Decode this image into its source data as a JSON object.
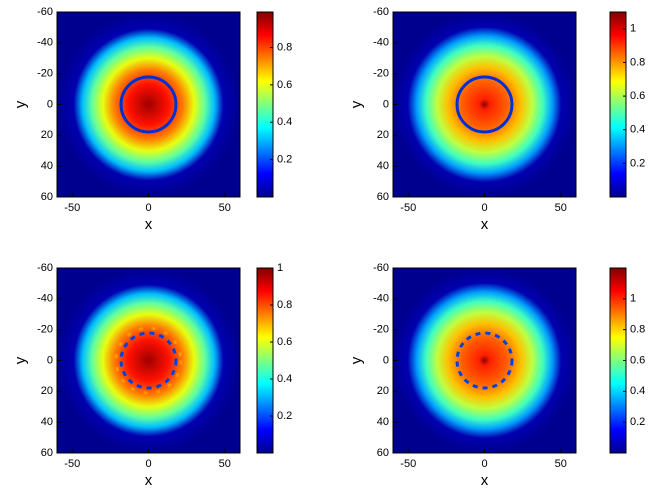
{
  "chart_data": [
    {
      "type": "heatmap",
      "xlabel": "x",
      "ylabel": "y",
      "xlim": [
        -60,
        60
      ],
      "ylim": [
        -60,
        60
      ],
      "y_reversed": true,
      "xticks": [
        -50,
        0,
        50
      ],
      "yticks": [
        -60,
        -40,
        -20,
        0,
        20,
        40,
        60
      ],
      "colormap": "jet",
      "clim": [
        0,
        0.99
      ],
      "cticks": [
        0.2,
        0.4,
        0.6,
        0.8
      ]
    },
    {
      "type": "heatmap",
      "xlabel": "x",
      "ylabel": "y",
      "xlim": [
        -60,
        60
      ],
      "ylim": [
        -60,
        60
      ],
      "y_reversed": true,
      "xticks": [
        -50,
        0,
        50
      ],
      "yticks": [
        -60,
        -40,
        -20,
        0,
        20,
        40,
        60
      ],
      "colormap": "jet",
      "clim": [
        0,
        1.1
      ],
      "cticks": [
        0.2,
        0.4,
        0.6,
        0.8,
        1
      ]
    },
    {
      "type": "heatmap",
      "xlabel": "x",
      "ylabel": "y",
      "xlim": [
        -60,
        60
      ],
      "ylim": [
        -60,
        60
      ],
      "y_reversed": true,
      "xticks": [
        -50,
        0,
        50
      ],
      "yticks": [
        -60,
        -40,
        -20,
        0,
        20,
        40,
        60
      ],
      "colormap": "jet",
      "clim": [
        0,
        1
      ],
      "cticks": [
        0.2,
        0.4,
        0.6,
        0.8,
        1
      ]
    },
    {
      "type": "heatmap",
      "xlabel": "x",
      "ylabel": "y",
      "xlim": [
        -60,
        60
      ],
      "ylim": [
        -60,
        60
      ],
      "y_reversed": true,
      "xticks": [
        -50,
        0,
        50
      ],
      "yticks": [
        -60,
        -40,
        -20,
        0,
        20,
        40,
        60
      ],
      "colormap": "jet",
      "clim": [
        0,
        1.2
      ],
      "cticks": [
        0.2,
        0.4,
        0.6,
        0.8,
        1
      ]
    }
  ]
}
